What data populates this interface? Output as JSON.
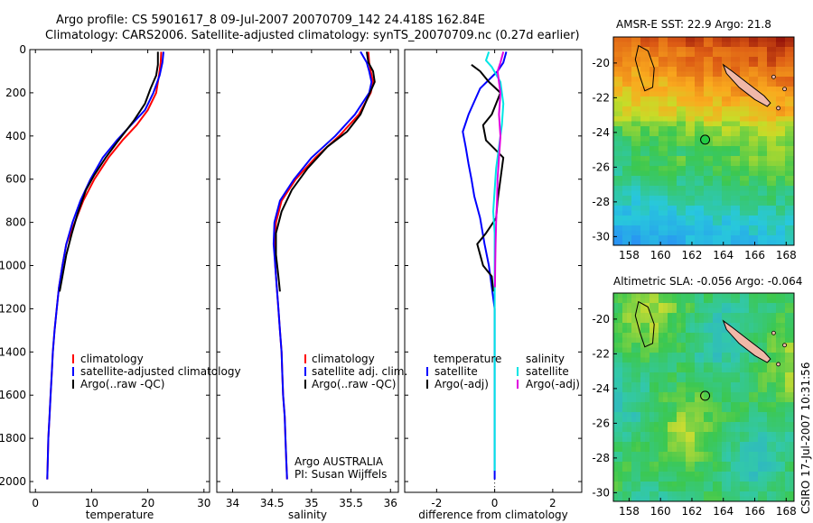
{
  "header": {
    "line1": "Argo profile: CS 5901617_8 09-Jul-2007 20070709_142 24.418S 162.84E",
    "line2": "Climatology: CARS2006. Satellite-adjusted climatology: synTS_20070709.nc (0.27d earlier)"
  },
  "colors": {
    "climatology": "#ff0000",
    "satellite": "#0000ff",
    "argo": "#000000",
    "sal_satellite": "#00e5e5",
    "sal_argo": "#e000e0"
  },
  "chart_data": [
    {
      "type": "line",
      "panel": "temperature",
      "xlabel": "temperature",
      "ylabel": "",
      "xlim": [
        -1,
        31
      ],
      "ylim": [
        0,
        2050
      ],
      "x_ticks": [
        0,
        10,
        20,
        30
      ],
      "y_ticks": [
        0,
        200,
        400,
        600,
        800,
        1000,
        1200,
        1400,
        1600,
        1800,
        2000
      ],
      "legend": {
        "placement": "lower-middle",
        "entries": [
          "climatology",
          "satellite-adjusted climatology",
          "Argo(..raw -QC)"
        ]
      },
      "series": [
        {
          "name": "climatology",
          "color": "#ff0000",
          "points": [
            [
              22.4,
              10
            ],
            [
              22.3,
              60
            ],
            [
              22,
              120
            ],
            [
              21.5,
              200
            ],
            [
              20,
              280
            ],
            [
              18,
              350
            ],
            [
              15.5,
              420
            ],
            [
              13,
              500
            ],
            [
              10.5,
              600
            ],
            [
              8.5,
              700
            ],
            [
              7,
              800
            ],
            [
              5.5,
              900
            ],
            [
              4.8,
              1000
            ],
            [
              4.2,
              1100
            ],
            [
              3.8,
              1200
            ],
            [
              3.4,
              1300
            ],
            [
              3.1,
              1400
            ],
            [
              2.9,
              1500
            ],
            [
              2.7,
              1600
            ],
            [
              2.5,
              1700
            ],
            [
              2.3,
              1800
            ],
            [
              2.2,
              1900
            ],
            [
              2.1,
              1990
            ]
          ]
        },
        {
          "name": "satellite-adjusted climatology",
          "color": "#0000ff",
          "points": [
            [
              22.8,
              10
            ],
            [
              22.6,
              60
            ],
            [
              22.1,
              120
            ],
            [
              21,
              200
            ],
            [
              19.5,
              280
            ],
            [
              17,
              350
            ],
            [
              14.5,
              420
            ],
            [
              12,
              500
            ],
            [
              9.8,
              600
            ],
            [
              8,
              700
            ],
            [
              6.6,
              800
            ],
            [
              5.5,
              900
            ],
            [
              4.8,
              1000
            ],
            [
              4.2,
              1100
            ],
            [
              3.8,
              1200
            ],
            [
              3.4,
              1300
            ],
            [
              3.1,
              1400
            ],
            [
              2.9,
              1500
            ],
            [
              2.7,
              1600
            ],
            [
              2.5,
              1700
            ],
            [
              2.3,
              1800
            ],
            [
              2.2,
              1900
            ],
            [
              2.1,
              1990
            ]
          ]
        },
        {
          "name": "Argo(..raw -QC)",
          "color": "#000000",
          "points": [
            [
              21.8,
              10
            ],
            [
              21.8,
              70
            ],
            [
              21.5,
              120
            ],
            [
              20.5,
              180
            ],
            [
              19.5,
              250
            ],
            [
              17.5,
              330
            ],
            [
              16,
              380
            ],
            [
              14.5,
              430
            ],
            [
              12.5,
              500
            ],
            [
              10.5,
              580
            ],
            [
              9,
              650
            ],
            [
              7.5,
              760
            ],
            [
              6.5,
              850
            ],
            [
              5.5,
              950
            ],
            [
              4.8,
              1050
            ],
            [
              4.3,
              1120
            ]
          ]
        }
      ]
    },
    {
      "type": "line",
      "panel": "salinity",
      "xlabel": "salinity",
      "ylabel": "",
      "xlim": [
        33.8,
        36.1
      ],
      "ylim": [
        0,
        2050
      ],
      "x_ticks": [
        34,
        34.5,
        35,
        35.5,
        36
      ],
      "y_ticks": [
        0,
        200,
        400,
        600,
        800,
        1000,
        1200,
        1400,
        1600,
        1800,
        2000
      ],
      "legend": {
        "placement": "lower-middle",
        "entries": [
          "climatology",
          "satellite adj. clim.",
          "Argo(..raw -QC)"
        ]
      },
      "annotation": [
        "Argo AUSTRALIA",
        "PI: Susan Wijffels"
      ],
      "series": [
        {
          "name": "climatology",
          "color": "#ff0000",
          "points": [
            [
              35.72,
              10
            ],
            [
              35.73,
              60
            ],
            [
              35.75,
              100
            ],
            [
              35.78,
              150
            ],
            [
              35.75,
              200
            ],
            [
              35.6,
              300
            ],
            [
              35.35,
              400
            ],
            [
              35.05,
              500
            ],
            [
              34.8,
              600
            ],
            [
              34.62,
              700
            ],
            [
              34.55,
              800
            ],
            [
              34.53,
              900
            ],
            [
              34.54,
              1000
            ],
            [
              34.56,
              1100
            ],
            [
              34.58,
              1200
            ],
            [
              34.6,
              1300
            ],
            [
              34.62,
              1400
            ],
            [
              34.63,
              1500
            ],
            [
              34.64,
              1600
            ],
            [
              34.66,
              1700
            ],
            [
              34.67,
              1800
            ],
            [
              34.68,
              1900
            ],
            [
              34.69,
              1990
            ]
          ]
        },
        {
          "name": "satellite adj. clim.",
          "color": "#0000ff",
          "points": [
            [
              35.62,
              10
            ],
            [
              35.7,
              60
            ],
            [
              35.73,
              100
            ],
            [
              35.76,
              150
            ],
            [
              35.73,
              200
            ],
            [
              35.55,
              300
            ],
            [
              35.3,
              400
            ],
            [
              35.0,
              500
            ],
            [
              34.78,
              600
            ],
            [
              34.6,
              700
            ],
            [
              34.53,
              800
            ],
            [
              34.52,
              900
            ],
            [
              34.54,
              1000
            ],
            [
              34.56,
              1100
            ],
            [
              34.58,
              1200
            ],
            [
              34.6,
              1300
            ],
            [
              34.62,
              1400
            ],
            [
              34.63,
              1500
            ],
            [
              34.64,
              1600
            ],
            [
              34.66,
              1700
            ],
            [
              34.67,
              1800
            ],
            [
              34.68,
              1900
            ],
            [
              34.69,
              1990
            ]
          ]
        },
        {
          "name": "Argo(..raw -QC)",
          "color": "#000000",
          "points": [
            [
              35.7,
              10
            ],
            [
              35.72,
              60
            ],
            [
              35.78,
              100
            ],
            [
              35.8,
              150
            ],
            [
              35.74,
              200
            ],
            [
              35.62,
              300
            ],
            [
              35.45,
              380
            ],
            [
              35.2,
              450
            ],
            [
              34.95,
              550
            ],
            [
              34.75,
              650
            ],
            [
              34.62,
              750
            ],
            [
              34.55,
              850
            ],
            [
              34.55,
              950
            ],
            [
              34.58,
              1050
            ],
            [
              34.6,
              1120
            ]
          ]
        }
      ]
    },
    {
      "type": "line",
      "panel": "difference",
      "xlabel": "difference from climatology",
      "ylabel": "",
      "xlim": [
        -3.1,
        3.0
      ],
      "ylim": [
        0,
        2050
      ],
      "x_ticks": [
        -2,
        0,
        2
      ],
      "y_ticks": [
        0,
        200,
        400,
        600,
        800,
        1000,
        1200,
        1400,
        1600,
        1800,
        2000
      ],
      "legend": {
        "placement": "lower-middle",
        "entries": [
          "temperature",
          "satellite",
          "Argo(-adj)",
          "salinity",
          "satellite",
          "Argo(-adj)"
        ]
      },
      "series": [
        {
          "name": "temperature satellite",
          "color": "#0000ff",
          "points": [
            [
              0.4,
              10
            ],
            [
              0.3,
              60
            ],
            [
              0.1,
              100
            ],
            [
              -0.5,
              180
            ],
            [
              -0.9,
              300
            ],
            [
              -1.1,
              380
            ],
            [
              -1.0,
              450
            ],
            [
              -0.9,
              530
            ],
            [
              -0.8,
              600
            ],
            [
              -0.7,
              680
            ],
            [
              -0.5,
              780
            ],
            [
              -0.35,
              900
            ],
            [
              -0.2,
              1000
            ],
            [
              -0.1,
              1100
            ],
            [
              0,
              1200
            ],
            [
              0,
              1300
            ],
            [
              0,
              1400
            ],
            [
              0,
              1500
            ],
            [
              0,
              1600
            ],
            [
              0,
              1700
            ],
            [
              0,
              1800
            ],
            [
              0,
              1900
            ],
            [
              0,
              1990
            ]
          ]
        },
        {
          "name": "temperature Argo(-adj)",
          "color": "#000000",
          "points": [
            [
              -0.8,
              70
            ],
            [
              -0.5,
              100
            ],
            [
              -0.2,
              150
            ],
            [
              0.2,
              200
            ],
            [
              -0.1,
              300
            ],
            [
              -0.4,
              350
            ],
            [
              -0.3,
              420
            ],
            [
              0.3,
              500
            ],
            [
              0.2,
              600
            ],
            [
              0.1,
              700
            ],
            [
              0.05,
              780
            ],
            [
              -0.3,
              850
            ],
            [
              -0.6,
              900
            ],
            [
              -0.4,
              1000
            ],
            [
              -0.1,
              1050
            ],
            [
              -0.05,
              1120
            ]
          ]
        },
        {
          "name": "salinity satellite",
          "color": "#00e5e5",
          "points": [
            [
              -0.2,
              10
            ],
            [
              -0.3,
              50
            ],
            [
              -0.1,
              80
            ],
            [
              0.2,
              150
            ],
            [
              0.3,
              250
            ],
            [
              0.25,
              350
            ],
            [
              0.15,
              450
            ],
            [
              0.05,
              550
            ],
            [
              0,
              650
            ],
            [
              -0.05,
              750
            ],
            [
              0,
              850
            ],
            [
              0,
              950
            ],
            [
              0,
              1050
            ],
            [
              0,
              1150
            ],
            [
              0,
              1250
            ],
            [
              0,
              1350
            ],
            [
              0,
              1450
            ],
            [
              0,
              1550
            ],
            [
              0,
              1650
            ],
            [
              0,
              1750
            ],
            [
              0,
              1850
            ],
            [
              0,
              1950
            ]
          ]
        },
        {
          "name": "salinity Argo(-adj)",
          "color": "#e000e0",
          "points": [
            [
              0.3,
              10
            ],
            [
              0.2,
              60
            ],
            [
              0.1,
              100
            ],
            [
              0.2,
              200
            ],
            [
              0.15,
              300
            ],
            [
              0.2,
              400
            ],
            [
              0.15,
              500
            ],
            [
              0.1,
              600
            ],
            [
              0.08,
              700
            ],
            [
              0.05,
              800
            ],
            [
              0.03,
              900
            ],
            [
              0.02,
              1000
            ],
            [
              0.01,
              1100
            ]
          ]
        }
      ]
    },
    {
      "type": "heatmap",
      "panel": "sst-map",
      "title": "AMSR-E SST: 22.9 Argo: 21.8",
      "xlim": [
        157,
        168.5
      ],
      "ylim": [
        -30.5,
        -18.5
      ],
      "x_ticks": [
        158,
        160,
        162,
        164,
        166,
        168
      ],
      "y_ticks": [
        -20,
        -22,
        -24,
        -26,
        -28,
        -30
      ],
      "marker": {
        "lon": 162.84,
        "lat": -24.418
      }
    },
    {
      "type": "heatmap",
      "panel": "sla-map",
      "title": "Altimetric SLA: -0.056 Argo: -0.064",
      "xlim": [
        157,
        168.5
      ],
      "ylim": [
        -30.5,
        -18.5
      ],
      "x_ticks": [
        158,
        160,
        162,
        164,
        166,
        168
      ],
      "y_ticks": [
        -20,
        -22,
        -24,
        -26,
        -28,
        -30
      ],
      "marker": {
        "lon": 162.84,
        "lat": -24.418
      }
    }
  ],
  "footer_stamp": "CSIRO 17-Jul-2007 10:31:56"
}
